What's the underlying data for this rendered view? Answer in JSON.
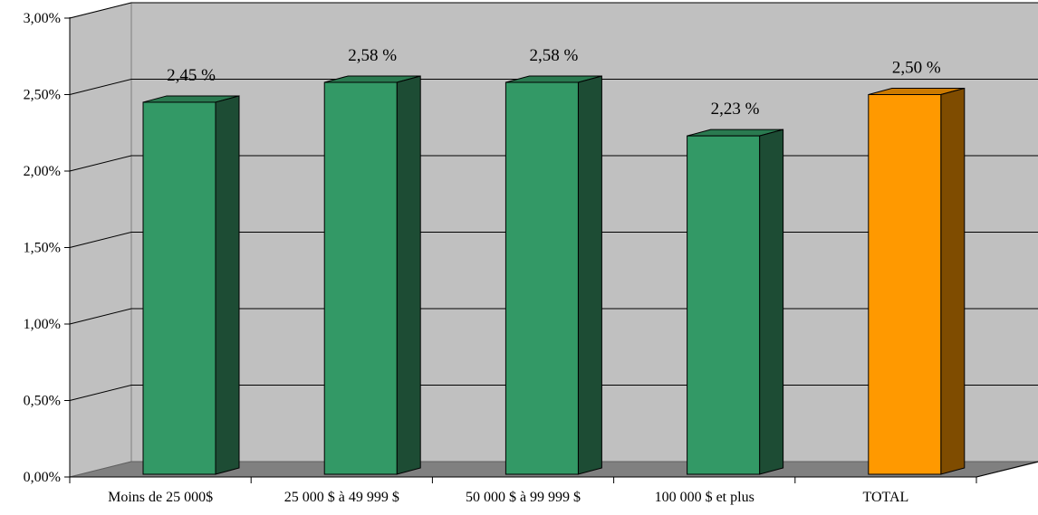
{
  "chart_data": {
    "type": "bar",
    "title": "",
    "xlabel": "",
    "ylabel": "",
    "categories": [
      "Moins de 25 000$",
      "25 000 $ à 49 999 $",
      "50 000 $ à 99 999 $",
      "100 000 $ et plus",
      "TOTAL"
    ],
    "values": [
      2.45,
      2.58,
      2.58,
      2.23,
      2.5
    ],
    "value_labels": [
      "2,45 %",
      "2,58 %",
      "2,58 %",
      "2,23 %",
      "2,50 %"
    ],
    "ylim": [
      0,
      3
    ],
    "yticks": [
      0,
      0.5,
      1,
      1.5,
      2,
      2.5,
      3
    ],
    "ytick_labels": [
      "0,00%",
      "0,50%",
      "1,00%",
      "1,50%",
      "2,00%",
      "2,50%",
      "3,00%"
    ],
    "grid": true,
    "legend": "none",
    "three_d": true,
    "colors": {
      "bar_front": "#339966",
      "bar_side": "#1d4c34",
      "bar_top": "#2a7a50",
      "highlight_front": "#ff9900",
      "highlight_side": "#7f4c00",
      "highlight_top": "#cc7a00",
      "back_wall": "#c0c0c0",
      "side_wall": "#c0c0c0",
      "floor": "#808080"
    },
    "highlight_category": "TOTAL"
  }
}
